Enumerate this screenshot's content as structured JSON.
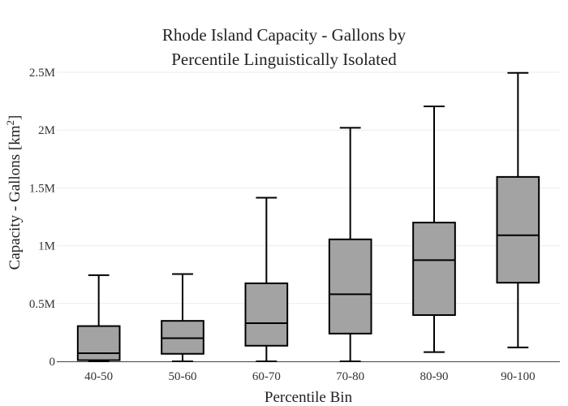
{
  "chart_data": {
    "type": "box",
    "title_lines": [
      "Rhode Island Capacity - Gallons by",
      "Percentile Linguistically Isolated"
    ],
    "xlabel": "Percentile Bin",
    "ylabel_main": "Capacity - Gallons  [km",
    "ylabel_sup": "2",
    "ylabel_end": "]",
    "box_color": "#a3a3a3",
    "line_color": "#000000",
    "ylim": [
      0,
      2500000
    ],
    "yticks": [
      {
        "value": 0,
        "label": "0"
      },
      {
        "value": 500000,
        "label": "0.5M"
      },
      {
        "value": 1000000,
        "label": "1M"
      },
      {
        "value": 1500000,
        "label": "1.5M"
      },
      {
        "value": 2000000,
        "label": "2M"
      },
      {
        "value": 2500000,
        "label": "2.5M"
      }
    ],
    "categories": [
      "40-50",
      "50-60",
      "60-70",
      "70-80",
      "80-90",
      "90-100"
    ],
    "boxes": [
      {
        "category": "40-50",
        "min": 0,
        "q1": 10000,
        "median": 70000,
        "q3": 305000,
        "max": 745000
      },
      {
        "category": "50-60",
        "min": 0,
        "q1": 65000,
        "median": 200000,
        "q3": 350000,
        "max": 755000
      },
      {
        "category": "60-70",
        "min": 0,
        "q1": 135000,
        "median": 330000,
        "q3": 675000,
        "max": 1415000
      },
      {
        "category": "70-80",
        "min": 0,
        "q1": 240000,
        "median": 580000,
        "q3": 1055000,
        "max": 2020000
      },
      {
        "category": "80-90",
        "min": 80000,
        "q1": 400000,
        "median": 875000,
        "q3": 1200000,
        "max": 2205000
      },
      {
        "category": "90-100",
        "min": 120000,
        "q1": 680000,
        "median": 1090000,
        "q3": 1595000,
        "max": 2495000
      }
    ]
  }
}
